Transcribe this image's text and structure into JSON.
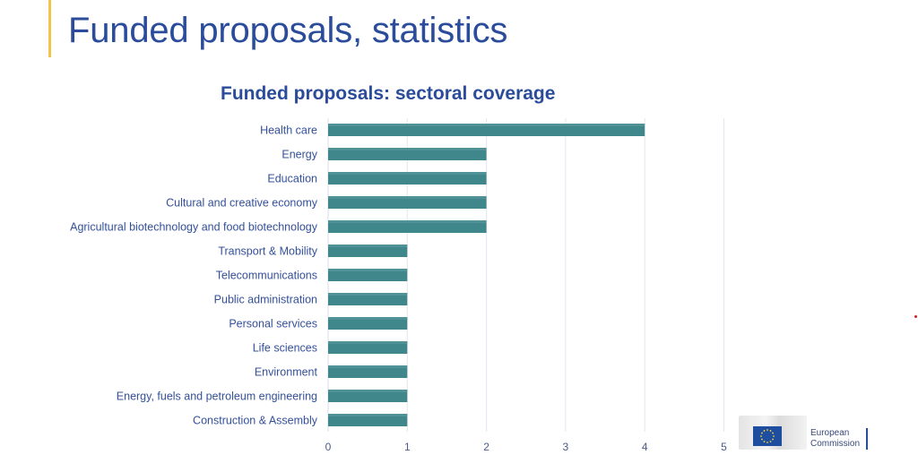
{
  "slide": {
    "title": "Funded proposals, statistics",
    "accent_color": "#f0c54a",
    "title_color": "#2a4c9a"
  },
  "logo": {
    "icon": "eu-flag-icon",
    "line1": "European",
    "line2": "Commission"
  },
  "chart_data": {
    "type": "bar",
    "orientation": "horizontal",
    "title": "Funded proposals: sectoral coverage",
    "xlabel": "",
    "ylabel": "",
    "categories": [
      "Health care",
      "Energy",
      "Education",
      "Cultural and creative economy",
      "Agricultural biotechnology and food biotechnology",
      "Transport & Mobility",
      "Telecommunications",
      "Public administration",
      "Personal services",
      "Life sciences",
      "Environment",
      "Energy, fuels and petroleum engineering",
      "Construction & Assembly"
    ],
    "values": [
      4,
      2,
      2,
      2,
      2,
      1,
      1,
      1,
      1,
      1,
      1,
      1,
      1
    ],
    "xlim": [
      0,
      5
    ],
    "xticks": [
      "0",
      "1",
      "2",
      "3",
      "4",
      "5"
    ],
    "grid": true,
    "legend": "none",
    "bar_color": "#3f878a"
  }
}
